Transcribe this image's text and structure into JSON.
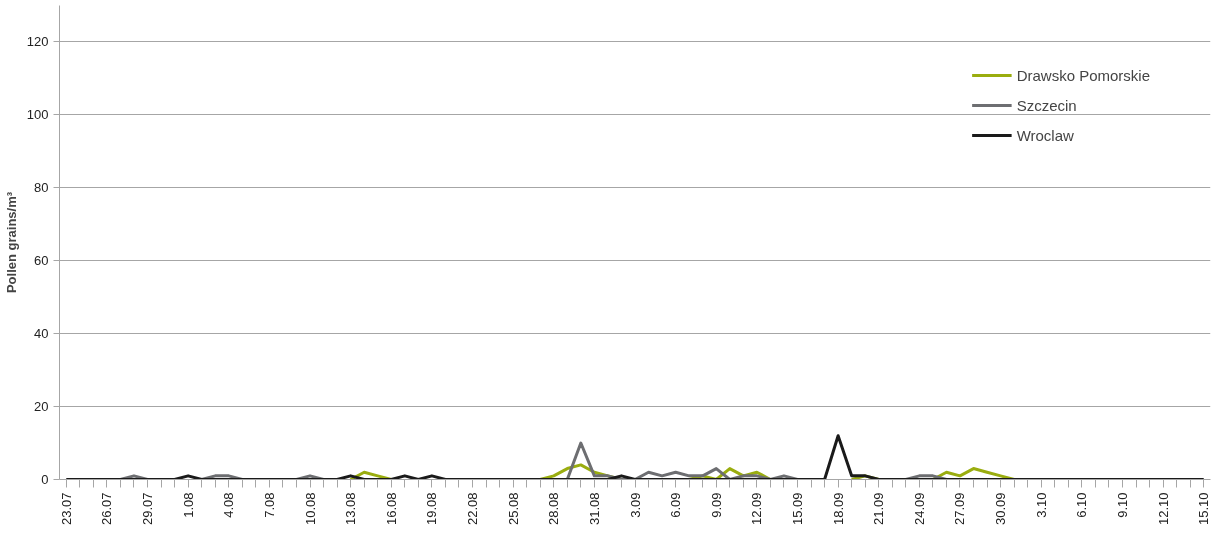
{
  "chart_data": {
    "type": "line",
    "ylabel": "Pollen grains/m³",
    "categories": [
      "23.07",
      null,
      null,
      "26.07",
      null,
      null,
      "29.07",
      null,
      null,
      "1.08",
      null,
      null,
      "4.08",
      null,
      null,
      "7.08",
      null,
      null,
      "10.08",
      null,
      null,
      "13.08",
      null,
      null,
      "16.08",
      null,
      null,
      "19.08",
      null,
      null,
      "22.08",
      null,
      null,
      "25.08",
      null,
      null,
      "28.08",
      null,
      null,
      "31.08",
      null,
      null,
      "3.09",
      null,
      null,
      "6.09",
      null,
      null,
      "9.09",
      null,
      null,
      "12.09",
      null,
      null,
      "15.09",
      null,
      null,
      "18.09",
      null,
      null,
      "21.09",
      null,
      null,
      "24.09",
      null,
      null,
      "27.09",
      null,
      null,
      "30.09",
      null,
      null,
      "3.10",
      null,
      null,
      "6.10",
      null,
      null,
      "9.10",
      null,
      null,
      "12.10",
      null,
      null,
      "15.10"
    ],
    "series": [
      {
        "name": "Drawsko Pomorskie",
        "color": "#9aad0f",
        "values": [
          null,
          null,
          null,
          null,
          null,
          null,
          null,
          null,
          null,
          null,
          null,
          null,
          null,
          null,
          null,
          null,
          null,
          null,
          null,
          null,
          null,
          0,
          2,
          1,
          0,
          null,
          null,
          null,
          null,
          null,
          null,
          null,
          null,
          null,
          null,
          0,
          1,
          3,
          4,
          2,
          1,
          0,
          null,
          null,
          null,
          null,
          0,
          1,
          0,
          3,
          1,
          2,
          0,
          null,
          null,
          null,
          null,
          null,
          0,
          1,
          0,
          null,
          null,
          null,
          0,
          2,
          1,
          3,
          2,
          1,
          0,
          null,
          null,
          null,
          null,
          null,
          null,
          null,
          null,
          null,
          null,
          null,
          null,
          null,
          null
        ]
      },
      {
        "name": "Szczecin",
        "color": "#6d6e71",
        "values": [
          null,
          null,
          null,
          null,
          0,
          1,
          0,
          null,
          null,
          null,
          0,
          1,
          1,
          0,
          null,
          null,
          null,
          0,
          1,
          0,
          null,
          null,
          null,
          null,
          null,
          null,
          null,
          null,
          null,
          null,
          null,
          null,
          null,
          null,
          null,
          null,
          null,
          0,
          10,
          1,
          1,
          0,
          0,
          2,
          1,
          2,
          1,
          1,
          3,
          0,
          1,
          1,
          0,
          1,
          0,
          null,
          null,
          null,
          null,
          null,
          null,
          null,
          0,
          1,
          1,
          0,
          null,
          null,
          null,
          null,
          null,
          null,
          null,
          null,
          null,
          null,
          null,
          null,
          null,
          null,
          null,
          null,
          null,
          null,
          null
        ]
      },
      {
        "name": "Wroclaw",
        "color": "#1a1a1a",
        "values": [
          0,
          0,
          0,
          0,
          0,
          0,
          0,
          0,
          0,
          1,
          0,
          0,
          0,
          0,
          0,
          0,
          0,
          0,
          0,
          0,
          0,
          1,
          0,
          0,
          0,
          1,
          0,
          1,
          0,
          0,
          0,
          0,
          0,
          0,
          0,
          0,
          0,
          0,
          0,
          0,
          0,
          1,
          0,
          0,
          0,
          0,
          0,
          0,
          0,
          0,
          0,
          0,
          0,
          0,
          0,
          0,
          0,
          12,
          1,
          1,
          0,
          0,
          0,
          0,
          0,
          0,
          0,
          0,
          0,
          0,
          0,
          0,
          0,
          0,
          0,
          0,
          0,
          0,
          0,
          0,
          0,
          0,
          0,
          0,
          0
        ]
      }
    ],
    "ylim": [
      0,
      130
    ],
    "yticks": [
      0,
      20,
      40,
      60,
      80,
      100,
      120
    ],
    "grid": "y",
    "legend": "top right",
    "marker": "none",
    "line_style": "solid"
  }
}
